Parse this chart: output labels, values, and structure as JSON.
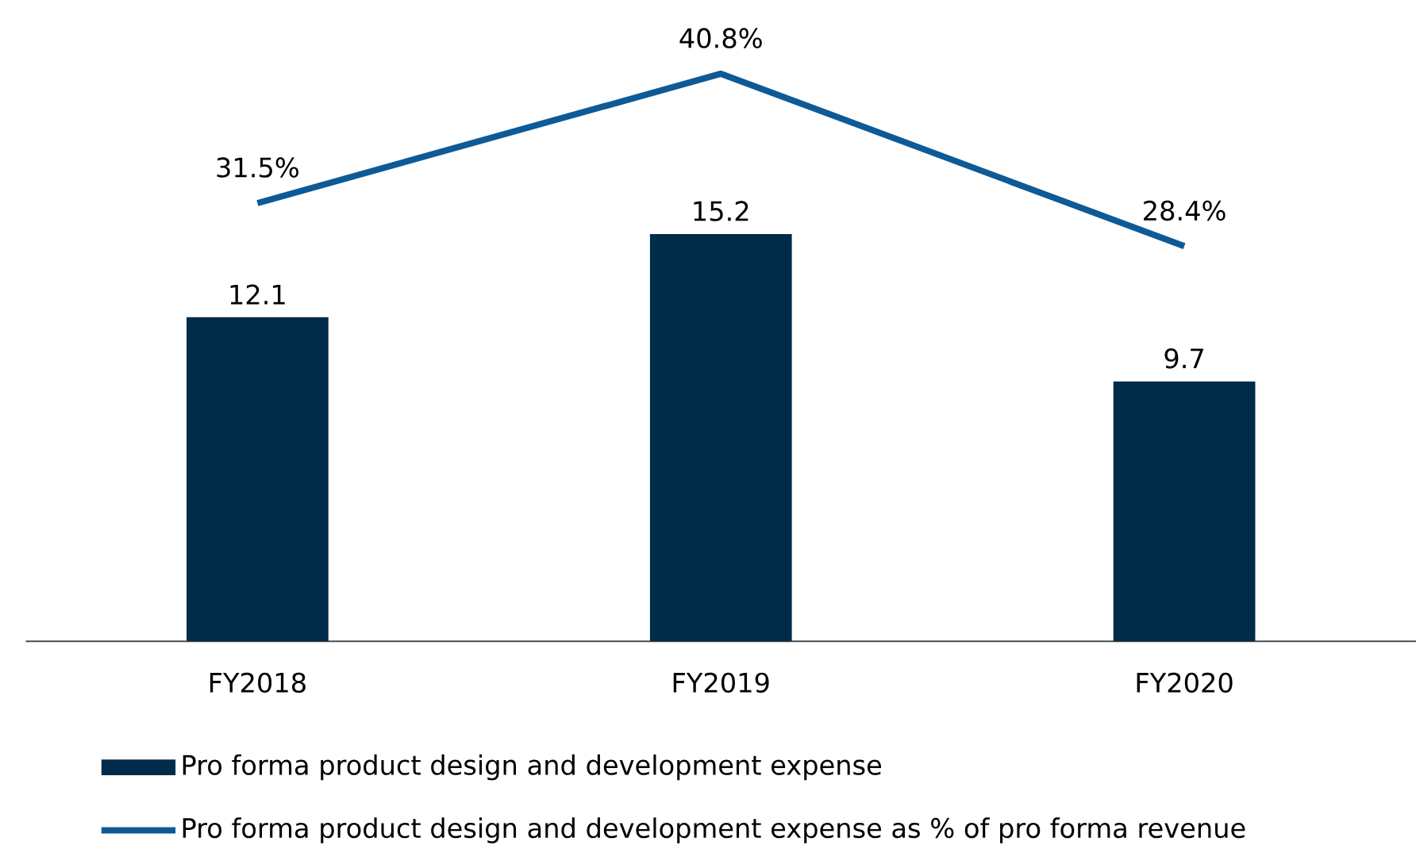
{
  "chart_data": {
    "type": "bar",
    "categories": [
      "FY2018",
      "FY2019",
      "FY2020"
    ],
    "series": [
      {
        "name": "Pro forma product design and development expense",
        "color": "#002b49",
        "values": [
          12.1,
          15.2,
          9.7
        ],
        "value_labels": [
          "12.1",
          "15.2",
          "9.7"
        ]
      },
      {
        "name": "Pro forma product design and development expense as % of pro forma revenue",
        "type": "line",
        "axis": "y2",
        "color": "#0e5a96",
        "values": [
          31.5,
          40.8,
          28.4
        ],
        "value_labels": [
          "31.5%",
          "40.8%",
          "28.4%"
        ],
        "line_style": "solid"
      }
    ],
    "tick_labels": "x",
    "grid": false,
    "legend": "bottom"
  }
}
